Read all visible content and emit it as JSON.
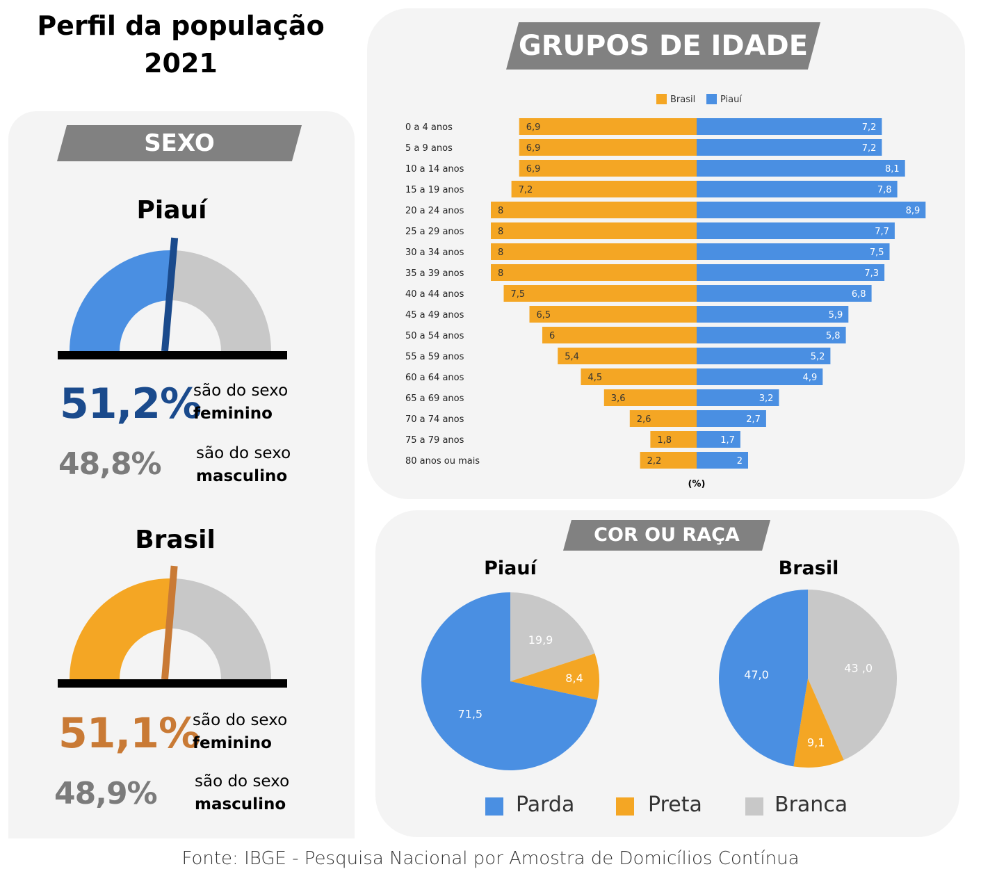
{
  "title": "Perfil da população 2021",
  "footer": "Fonte: IBGE - Pesquisa Nacional por Amostra de Domicílios Contínua",
  "colors": {
    "banner": "#818181",
    "piaui_blue": "#4a8fe2",
    "piaui_dark": "#1a4a8c",
    "brasil_orange": "#f4a624",
    "brasil_dark": "#c97a35",
    "grey": "#c8c8c8",
    "men_text": "#7b7b7b"
  },
  "sexo": {
    "header": "SEXO",
    "piaui": {
      "title": "Piauí",
      "fem_pct": "51,2%",
      "fem_value": 51.2,
      "fem_desc": "são do sexo",
      "fem_word": "feminino",
      "masc_pct": "48,8%",
      "masc_desc": "são do sexo",
      "masc_word": "masculino"
    },
    "brasil": {
      "title": "Brasil",
      "fem_pct": "51,1%",
      "fem_value": 51.1,
      "fem_desc": "são do sexo",
      "fem_word": "feminino",
      "masc_pct": "48,9%",
      "masc_desc": "são do sexo",
      "masc_word": "masculino"
    }
  },
  "idade": {
    "header": "GRUPOS DE IDADE"
  },
  "cor": {
    "header": "COR OU RAÇA",
    "legend": [
      {
        "label": "Parda",
        "color": "#4a8fe2"
      },
      {
        "label": "Preta",
        "color": "#f4a624"
      },
      {
        "label": "Branca",
        "color": "#c8c8c8"
      }
    ]
  },
  "chart_data": [
    {
      "type": "bar",
      "title": "",
      "xlabel": "(%)",
      "legend": [
        "Brasil",
        "Piauí"
      ],
      "categories": [
        "0 a 4 anos",
        "5 a 9 anos",
        "10 a 14 anos",
        "15 a 19 anos",
        "20 a 24 anos",
        "25 a 29 anos",
        "30 a 34 anos",
        "35 a 39 anos",
        "40 a 44 anos",
        "45 a 49 anos",
        "50 a 54 anos",
        "55 a 59 anos",
        "60 a 64 anos",
        "65 a 69 anos",
        "70 a 74 anos",
        "75 a 79 anos",
        "80 anos ou mais"
      ],
      "series": [
        {
          "name": "Brasil",
          "color": "#f4a624",
          "values": [
            6.9,
            6.9,
            6.9,
            7.2,
            8,
            8,
            8,
            8,
            7.5,
            6.5,
            6,
            5.4,
            4.5,
            3.6,
            2.6,
            1.8,
            2.2
          ],
          "labels": [
            "6,9",
            "6,9",
            "6,9",
            "7,2",
            "8",
            "8",
            "8",
            "8",
            "7,5",
            "6,5",
            "6",
            "5,4",
            "4,5",
            "3,6",
            "2,6",
            "1,8",
            "2,2"
          ]
        },
        {
          "name": "Piauí",
          "color": "#4a8fe2",
          "values": [
            7.2,
            7.2,
            8.1,
            7.8,
            8.9,
            7.7,
            7.5,
            7.3,
            6.8,
            5.9,
            5.8,
            5.2,
            4.9,
            3.2,
            2.7,
            1.7,
            2
          ],
          "labels": [
            "7,2",
            "7,2",
            "8,1",
            "7,8",
            "8,9",
            "7,7",
            "7,5",
            "7,3",
            "6,8",
            "5,9",
            "5,8",
            "5,2",
            "4,9",
            "3,2",
            "2,7",
            "1,7",
            "2"
          ]
        }
      ]
    },
    {
      "type": "pie",
      "title": "Piauí",
      "slices": [
        {
          "name": "Parda",
          "value": 71.5,
          "label": "71,5",
          "color": "#4a8fe2"
        },
        {
          "name": "Preta",
          "value": 8.4,
          "label": "8,4",
          "color": "#f4a624"
        },
        {
          "name": "Branca",
          "value": 19.9,
          "label": "19,9",
          "color": "#c8c8c8"
        }
      ]
    },
    {
      "type": "pie",
      "title": "Brasil",
      "slices": [
        {
          "name": "Parda",
          "value": 47.0,
          "label": "47,0",
          "color": "#4a8fe2"
        },
        {
          "name": "Preta",
          "value": 9.1,
          "label": "9,1",
          "color": "#f4a624"
        },
        {
          "name": "Branca",
          "value": 43.0,
          "label": "43 ,0",
          "color": "#c8c8c8"
        }
      ]
    }
  ]
}
